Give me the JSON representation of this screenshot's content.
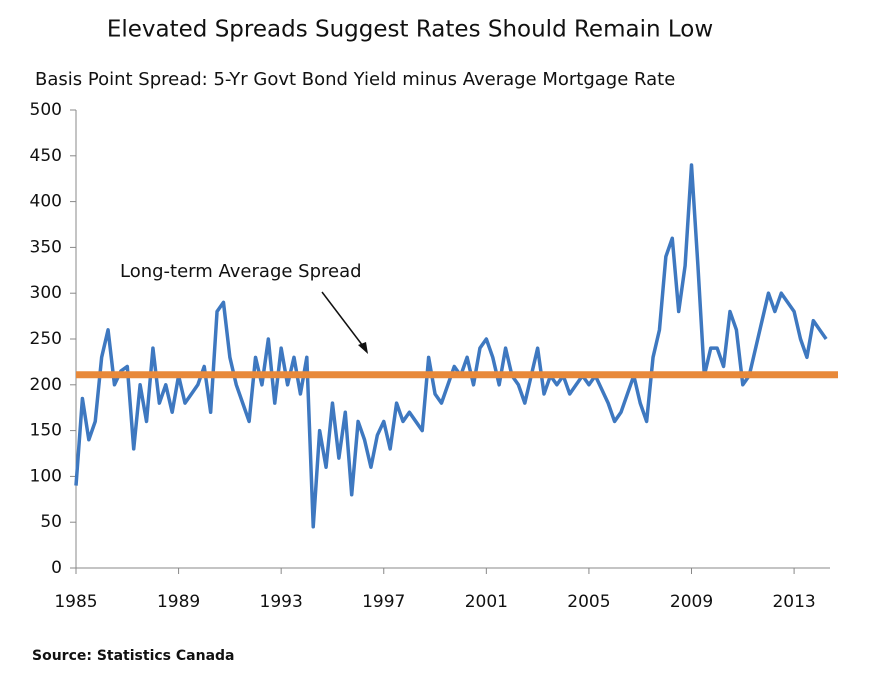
{
  "chart_data": {
    "type": "line",
    "title": "Elevated Spreads Suggest Rates Should Remain Low",
    "subtitle": "Basis Point Spread: 5-Yr Govt Bond Yield minus Average Mortgage Rate",
    "source": "Source: Statistics Canada",
    "annotation": "Long-term Average Spread",
    "average": {
      "value": 211,
      "color": "#e8893a"
    },
    "x": [
      1985,
      1985.25,
      1985.5,
      1985.75,
      1986,
      1986.25,
      1986.5,
      1986.75,
      1987,
      1987.25,
      1987.5,
      1987.75,
      1988,
      1988.25,
      1988.5,
      1988.75,
      1989,
      1989.25,
      1989.5,
      1989.75,
      1990,
      1990.25,
      1990.5,
      1990.75,
      1991,
      1991.25,
      1991.5,
      1991.75,
      1992,
      1992.25,
      1992.5,
      1992.75,
      1993,
      1993.25,
      1993.5,
      1993.75,
      1994,
      1994.25,
      1994.5,
      1994.75,
      1995,
      1995.25,
      1995.5,
      1995.75,
      1996,
      1996.25,
      1996.5,
      1996.75,
      1997,
      1997.25,
      1997.5,
      1997.75,
      1998,
      1998.25,
      1998.5,
      1998.75,
      1999,
      1999.25,
      1999.5,
      1999.75,
      2000,
      2000.25,
      2000.5,
      2000.75,
      2001,
      2001.25,
      2001.5,
      2001.75,
      2002,
      2002.25,
      2002.5,
      2002.75,
      2003,
      2003.25,
      2003.5,
      2003.75,
      2004,
      2004.25,
      2004.5,
      2004.75,
      2005,
      2005.25,
      2005.5,
      2005.75,
      2006,
      2006.25,
      2006.5,
      2006.75,
      2007,
      2007.25,
      2007.5,
      2007.75,
      2008,
      2008.25,
      2008.5,
      2008.75,
      2009,
      2009.25,
      2009.5,
      2009.75,
      2010,
      2010.25,
      2010.5,
      2010.75,
      2011,
      2011.25,
      2011.5,
      2011.75,
      2012,
      2012.25,
      2012.5,
      2012.75,
      2013,
      2013.25,
      2013.5,
      2013.75,
      2014,
      2014.25
    ],
    "series": [
      {
        "color": "#3e78c0",
        "values": [
          90,
          185,
          140,
          160,
          230,
          260,
          200,
          215,
          220,
          130,
          200,
          160,
          240,
          180,
          200,
          170,
          210,
          180,
          190,
          200,
          220,
          170,
          280,
          290,
          230,
          200,
          180,
          160,
          230,
          200,
          250,
          180,
          240,
          200,
          230,
          190,
          230,
          45,
          150,
          110,
          180,
          120,
          170,
          80,
          160,
          140,
          110,
          145,
          160,
          130,
          180,
          160,
          170,
          160,
          150,
          230,
          190,
          180,
          200,
          220,
          210,
          230,
          200,
          240,
          250,
          230,
          200,
          240,
          210,
          200,
          180,
          210,
          240,
          190,
          210,
          200,
          210,
          190,
          200,
          210,
          200,
          210,
          195,
          180,
          160,
          170,
          190,
          210,
          180,
          160,
          230,
          260,
          340,
          360,
          280,
          330,
          440,
          330,
          210,
          240,
          240,
          220,
          280,
          260,
          200,
          210,
          240,
          270,
          300,
          280,
          300,
          290,
          280,
          250,
          230,
          270,
          260,
          250
        ]
      }
    ],
    "xlim": [
      1985,
      2014.4
    ],
    "xticks": [
      1985,
      1989,
      1993,
      1997,
      2001,
      2005,
      2009,
      2013
    ],
    "ylim": [
      0,
      500
    ],
    "yticks": [
      0,
      50,
      100,
      150,
      200,
      250,
      300,
      350,
      400,
      450,
      500
    ]
  }
}
